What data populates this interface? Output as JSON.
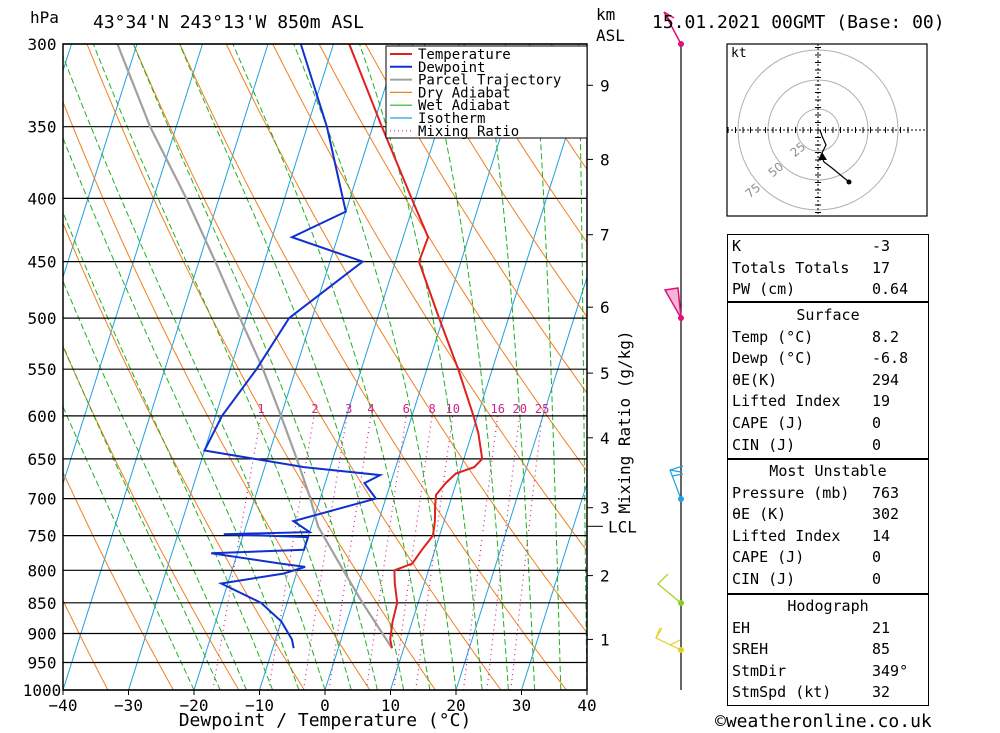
{
  "header": {
    "location": "43°34'N 243°13'W 850m ASL",
    "date": "15.01.2021 00GMT (Base: 00)",
    "hpa_label": "hPa",
    "km_label": "km",
    "asl_label": "ASL"
  },
  "legend": [
    "Temperature",
    "Dewpoint",
    "Parcel Trajectory",
    "Dry Adiabat",
    "Wet Adiabat",
    "Isotherm",
    "Mixing Ratio"
  ],
  "colors": {
    "temperature": "#e02020",
    "dewpoint": "#1030d0",
    "parcel": "#a0a0a0",
    "dry_adiabat": "#f08020",
    "wet_adiabat": "#20b020",
    "isotherm": "#20a0e0",
    "mixing_ratio": "#d02090"
  },
  "chart_data": {
    "type": "skew-t",
    "xlabel": "Dewpoint / Temperature (°C)",
    "ylabel": "hPa",
    "secondary_label": "Mixing Ratio (g/kg)",
    "xlim": [
      -40,
      40
    ],
    "ylim": [
      1000,
      300
    ],
    "pressure_ticks": [
      300,
      350,
      400,
      450,
      500,
      550,
      600,
      650,
      700,
      750,
      800,
      850,
      900,
      950,
      1000
    ],
    "temperature_ticks": [
      -40,
      -30,
      -20,
      -10,
      0,
      10,
      20,
      30,
      40
    ],
    "km_ticks": [
      {
        "label": "1",
        "p": 910
      },
      {
        "label": "2",
        "p": 808
      },
      {
        "label": "3",
        "p": 712
      },
      {
        "label": "4",
        "p": 625
      },
      {
        "label": "5",
        "p": 554
      },
      {
        "label": "6",
        "p": 490
      },
      {
        "label": "7",
        "p": 428
      },
      {
        "label": "8",
        "p": 372
      },
      {
        "label": "9",
        "p": 324
      }
    ],
    "lcl": {
      "label": "LCL",
      "p": 737
    },
    "mixing_ratio_labels": [
      "1",
      "2",
      "3",
      "4",
      "6",
      "8",
      "10",
      "16",
      "20",
      "25"
    ],
    "mixing_ratio_values": [
      1,
      2,
      3,
      4,
      6,
      8,
      10,
      16,
      20,
      25
    ],
    "temperature_profile": [
      {
        "p": 925,
        "t": 8.2
      },
      {
        "p": 910,
        "t": 7.5
      },
      {
        "p": 880,
        "t": 7.0
      },
      {
        "p": 850,
        "t": 6.8
      },
      {
        "p": 820,
        "t": 5.5
      },
      {
        "p": 800,
        "t": 4.8
      },
      {
        "p": 790,
        "t": 7.2
      },
      {
        "p": 770,
        "t": 8.0
      },
      {
        "p": 750,
        "t": 9.0
      },
      {
        "p": 730,
        "t": 8.6
      },
      {
        "p": 710,
        "t": 7.9
      },
      {
        "p": 695,
        "t": 7.5
      },
      {
        "p": 680,
        "t": 8.4
      },
      {
        "p": 668,
        "t": 9.5
      },
      {
        "p": 660,
        "t": 12.0
      },
      {
        "p": 650,
        "t": 12.8
      },
      {
        "p": 620,
        "t": 11.0
      },
      {
        "p": 600,
        "t": 9.4
      },
      {
        "p": 550,
        "t": 4.8
      },
      {
        "p": 500,
        "t": -0.6
      },
      {
        "p": 450,
        "t": -6.4
      },
      {
        "p": 430,
        "t": -6.2
      },
      {
        "p": 400,
        "t": -10.6
      },
      {
        "p": 350,
        "t": -18.6
      },
      {
        "p": 300,
        "t": -27.6
      }
    ],
    "dewpoint_profile": [
      {
        "p": 925,
        "t": -6.8
      },
      {
        "p": 910,
        "t": -7.5
      },
      {
        "p": 880,
        "t": -10.0
      },
      {
        "p": 850,
        "t": -14.0
      },
      {
        "p": 820,
        "t": -21.0
      },
      {
        "p": 805,
        "t": -12.0
      },
      {
        "p": 795,
        "t": -9.0
      },
      {
        "p": 790,
        "t": -13.0
      },
      {
        "p": 775,
        "t": -24.0
      },
      {
        "p": 770,
        "t": -10.0
      },
      {
        "p": 752,
        "t": -10.0
      },
      {
        "p": 748,
        "t": -23.0
      },
      {
        "p": 745,
        "t": -10.0
      },
      {
        "p": 730,
        "t": -13.0
      },
      {
        "p": 700,
        "t": -1.5
      },
      {
        "p": 680,
        "t": -4.0
      },
      {
        "p": 670,
        "t": -2.0
      },
      {
        "p": 660,
        "t": -14.0
      },
      {
        "p": 640,
        "t": -30.0
      },
      {
        "p": 600,
        "t": -29.0
      },
      {
        "p": 550,
        "t": -26.0
      },
      {
        "p": 500,
        "t": -23.5
      },
      {
        "p": 450,
        "t": -15.0
      },
      {
        "p": 430,
        "t": -27.0
      },
      {
        "p": 410,
        "t": -20.0
      },
      {
        "p": 350,
        "t": -27.0
      },
      {
        "p": 300,
        "t": -35.0
      }
    ],
    "parcel_profile": [
      {
        "p": 925,
        "t": 8.2
      },
      {
        "p": 850,
        "t": 1.5
      },
      {
        "p": 800,
        "t": -3.0
      },
      {
        "p": 737,
        "t": -9.0
      },
      {
        "p": 700,
        "t": -11.5
      },
      {
        "p": 650,
        "t": -15.5
      },
      {
        "p": 600,
        "t": -20.0
      },
      {
        "p": 550,
        "t": -25.0
      },
      {
        "p": 500,
        "t": -31.0
      },
      {
        "p": 450,
        "t": -37.5
      },
      {
        "p": 400,
        "t": -45.0
      },
      {
        "p": 350,
        "t": -54.0
      },
      {
        "p": 300,
        "t": -63.0
      }
    ]
  },
  "hodograph": {
    "unit_label": "kt",
    "ring_labels": [
      "25",
      "50",
      "75"
    ]
  },
  "indices": {
    "basic": [
      {
        "label": "K",
        "value": "-3"
      },
      {
        "label": "Totals Totals",
        "value": "17"
      },
      {
        "label": "PW (cm)",
        "value": "0.64"
      }
    ],
    "surface": {
      "title": "Surface",
      "rows": [
        {
          "label": "Temp (°C)",
          "value": "8.2"
        },
        {
          "label": "Dewp (°C)",
          "value": "-6.8"
        },
        {
          "label": "θE(K)",
          "value": "294"
        },
        {
          "label": "Lifted Index",
          "value": "19"
        },
        {
          "label": "CAPE (J)",
          "value": "0"
        },
        {
          "label": "CIN (J)",
          "value": "0"
        }
      ]
    },
    "most_unstable": {
      "title": "Most Unstable",
      "rows": [
        {
          "label": "Pressure (mb)",
          "value": "763"
        },
        {
          "label": "θE (K)",
          "value": "302"
        },
        {
          "label": "Lifted Index",
          "value": "14"
        },
        {
          "label": "CAPE (J)",
          "value": "0"
        },
        {
          "label": "CIN (J)",
          "value": "0"
        }
      ]
    },
    "hodograph": {
      "title": "Hodograph",
      "rows": [
        {
          "label": "EH",
          "value": "21"
        },
        {
          "label": "SREH",
          "value": "85"
        },
        {
          "label": "StmDir",
          "value": "349°"
        },
        {
          "label": "StmSpd (kt)",
          "value": "32"
        }
      ]
    }
  },
  "footer": {
    "copyright": "©weatheronline.co.uk"
  }
}
